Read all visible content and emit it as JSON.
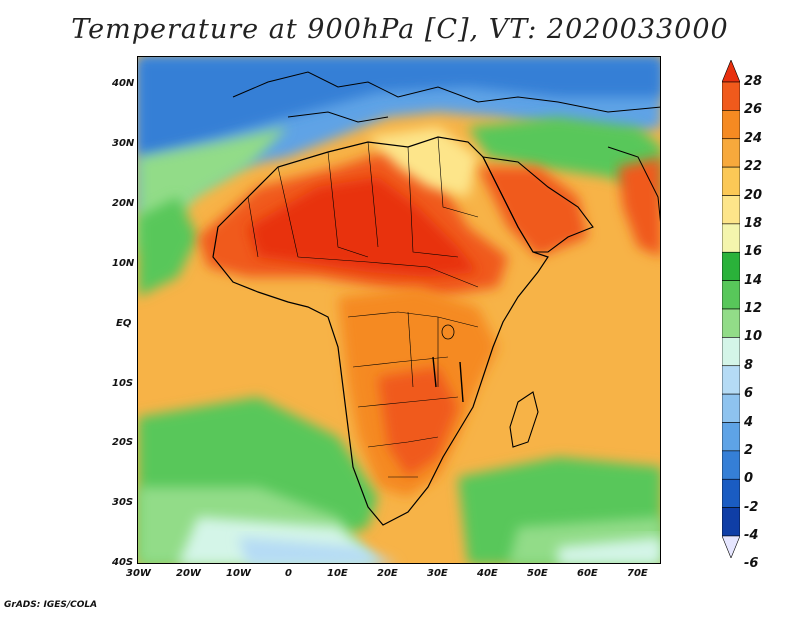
{
  "title": "Temperature at 900hPa [C], VT: 2020033000",
  "credit": "GrADS: IGES/COLA",
  "map": {
    "lat_labels": [
      "40N",
      "30N",
      "20N",
      "10N",
      "EQ",
      "10S",
      "20S",
      "30S",
      "40S"
    ],
    "lon_labels": [
      "30W",
      "20W",
      "10W",
      "0",
      "10E",
      "20E",
      "30E",
      "40E",
      "50E",
      "60E",
      "70E"
    ],
    "lon_range": [
      -30,
      75
    ],
    "lat_range": [
      -40,
      45
    ]
  },
  "colorbar": {
    "labels": [
      "28",
      "26",
      "24",
      "22",
      "20",
      "18",
      "16",
      "14",
      "12",
      "10",
      "8",
      "6",
      "4",
      "2",
      "0",
      "-2",
      "-4",
      "-6"
    ],
    "colors": [
      "#e8300f",
      "#f05a1c",
      "#f58a22",
      "#f7a93c",
      "#fbc856",
      "#fde58a",
      "#f4f5ad",
      "#2ab23a",
      "#58c75a",
      "#92dc88",
      "#d4f5e8",
      "#b5dbf5",
      "#8ec3ef",
      "#5ea3e6",
      "#357fd6",
      "#1a5cc2",
      "#0f3ea6",
      "#0b1f7a"
    ]
  }
}
